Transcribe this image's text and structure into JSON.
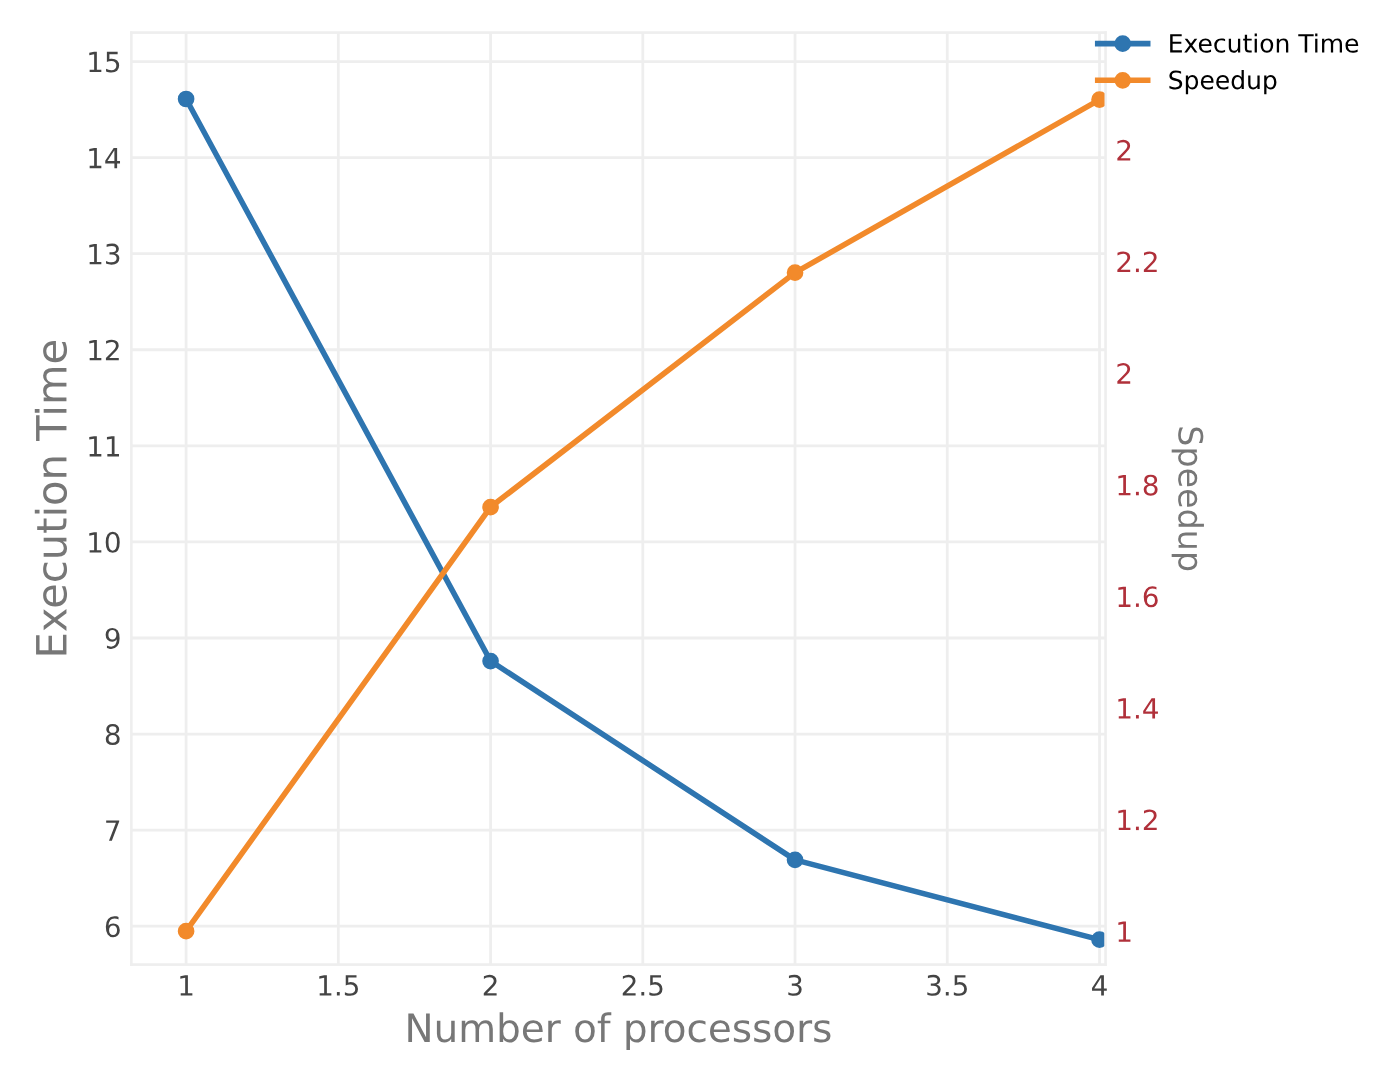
{
  "chart_data": {
    "type": "line",
    "xlabel": "Number of processors",
    "ylabel": "Execution Time",
    "y2label": "Speedup",
    "x": [
      1,
      2,
      3,
      4
    ],
    "series": [
      {
        "name": "Execution Time",
        "color": "#2e75b0",
        "values": [
          14.61,
          8.76,
          6.69,
          5.86
        ]
      },
      {
        "name": "Speedup",
        "color": "#f28a2b",
        "axis": "y2",
        "values": [
          1.0,
          1.76,
          2.18,
          2.49
        ]
      }
    ],
    "xlim": [
      0.82,
      4.02
    ],
    "xticks": [
      1,
      1.5,
      2,
      2.5,
      3,
      3.5,
      4
    ],
    "ylim": [
      5.6,
      15.3
    ],
    "yticks": [
      6,
      7,
      8,
      9,
      10,
      11,
      12,
      13,
      14,
      15
    ],
    "y2lim": [
      0.94,
      2.61
    ],
    "y2ticks": [
      1,
      1.2,
      1.4,
      1.6,
      1.8,
      2,
      2.2,
      {
        "value": 2.4,
        "label": "2"
      }
    ],
    "grid": true,
    "legend": "top right",
    "marker": "circle",
    "line_style": "solid"
  }
}
